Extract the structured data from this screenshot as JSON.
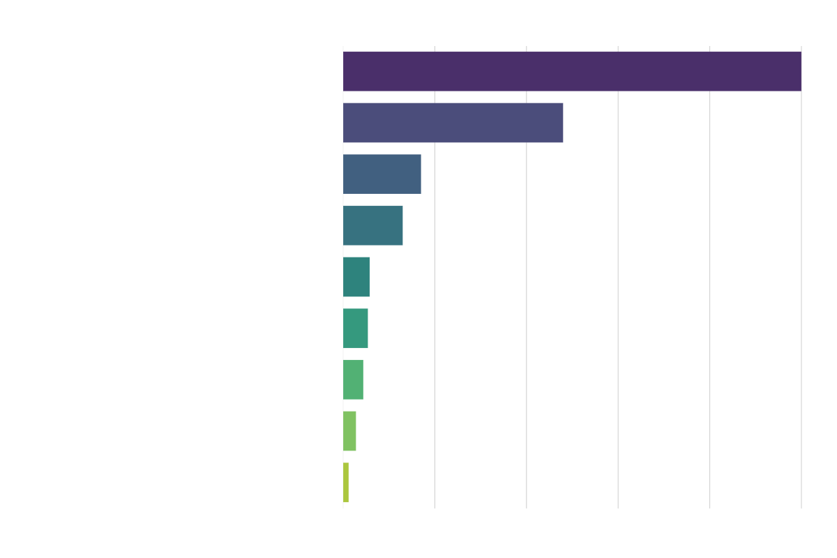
{
  "chart_data": {
    "type": "bar",
    "orientation": "horizontal",
    "title": "",
    "xlabel": "",
    "ylabel": "",
    "tick_labels_shown": false,
    "grid": "vertical",
    "xlim": [
      0,
      5
    ],
    "gridline_count": 5,
    "values": [
      5.0,
      2.4,
      0.85,
      0.65,
      0.29,
      0.27,
      0.22,
      0.14,
      0.06
    ],
    "colors": [
      "#4a2f6a",
      "#4b4d7b",
      "#416080",
      "#377280",
      "#2e837d",
      "#35997e",
      "#52b174",
      "#80c262",
      "#abc63e"
    ]
  }
}
